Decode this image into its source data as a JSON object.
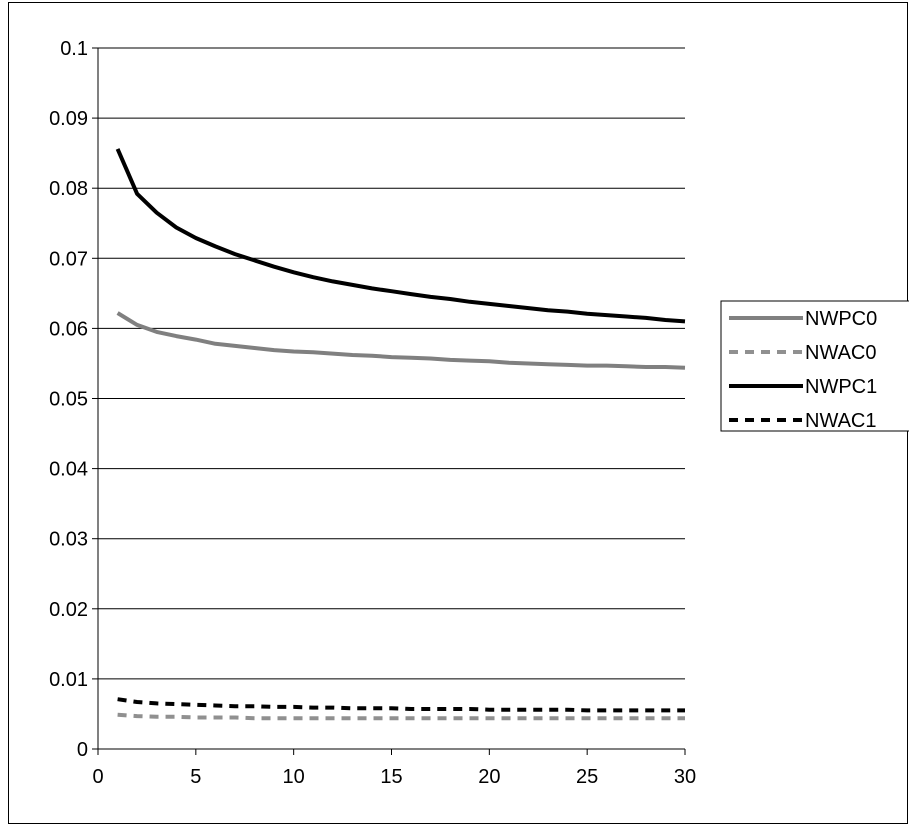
{
  "chart_data": {
    "type": "line",
    "title": "",
    "xlabel": "",
    "ylabel": "",
    "xlim": [
      0,
      30
    ],
    "ylim": [
      0,
      0.1
    ],
    "x_ticks": [
      "0",
      "5",
      "10",
      "15",
      "20",
      "25",
      "30"
    ],
    "y_ticks": [
      "0",
      "0.01",
      "0.02",
      "0.03",
      "0.04",
      "0.05",
      "0.06",
      "0.07",
      "0.08",
      "0.09",
      "0.1"
    ],
    "grid": "horizontal",
    "legend_position": "right",
    "x": [
      1,
      2,
      3,
      4,
      5,
      6,
      7,
      8,
      9,
      10,
      11,
      12,
      13,
      14,
      15,
      16,
      17,
      18,
      19,
      20,
      21,
      22,
      23,
      24,
      25,
      26,
      27,
      28,
      29,
      30
    ],
    "series": [
      {
        "name": "NWPC0",
        "color": "#808080",
        "style": "solid",
        "values": [
          0.0622,
          0.0605,
          0.0595,
          0.0589,
          0.0584,
          0.0578,
          0.0575,
          0.0572,
          0.0569,
          0.0567,
          0.0566,
          0.0564,
          0.0562,
          0.0561,
          0.0559,
          0.0558,
          0.0557,
          0.0555,
          0.0554,
          0.0553,
          0.0551,
          0.055,
          0.0549,
          0.0548,
          0.0547,
          0.0547,
          0.0546,
          0.0545,
          0.0545,
          0.0544
        ]
      },
      {
        "name": "NWAC0",
        "color": "#909090",
        "style": "dashed",
        "values": [
          0.0049,
          0.0047,
          0.0046,
          0.0046,
          0.0045,
          0.0045,
          0.0045,
          0.0044,
          0.0044,
          0.0044,
          0.0044,
          0.0044,
          0.0044,
          0.0044,
          0.0044,
          0.0044,
          0.0044,
          0.0044,
          0.0044,
          0.0044,
          0.0044,
          0.0044,
          0.0044,
          0.0044,
          0.0044,
          0.0044,
          0.0044,
          0.0044,
          0.0044,
          0.0044
        ]
      },
      {
        "name": "NWPC1",
        "color": "#000000",
        "style": "solid",
        "values": [
          0.0856,
          0.0792,
          0.0765,
          0.0744,
          0.0729,
          0.0717,
          0.0706,
          0.0697,
          0.0688,
          0.068,
          0.0673,
          0.0667,
          0.0662,
          0.0657,
          0.0653,
          0.0649,
          0.0645,
          0.0642,
          0.0638,
          0.0635,
          0.0632,
          0.0629,
          0.0626,
          0.0624,
          0.0621,
          0.0619,
          0.0617,
          0.0615,
          0.0612,
          0.061
        ]
      },
      {
        "name": "NWAC1",
        "color": "#000000",
        "style": "dashed",
        "values": [
          0.0071,
          0.0067,
          0.0065,
          0.0064,
          0.0063,
          0.0062,
          0.0061,
          0.0061,
          0.006,
          0.006,
          0.0059,
          0.0059,
          0.0058,
          0.0058,
          0.0058,
          0.0057,
          0.0057,
          0.0057,
          0.0057,
          0.0056,
          0.0056,
          0.0056,
          0.0056,
          0.0056,
          0.0055,
          0.0055,
          0.0055,
          0.0055,
          0.0055,
          0.0055
        ]
      }
    ]
  }
}
